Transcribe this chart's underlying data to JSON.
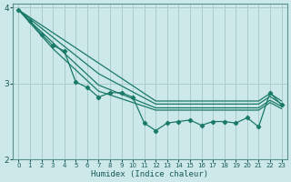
{
  "xlabel": "Humidex (Indice chaleur)",
  "background_color": "#cce8e8",
  "grid_color": "#aacccc",
  "line_color": "#1a7a6a",
  "xlim": [
    -0.5,
    23.5
  ],
  "ylim": [
    2,
    4.05
  ],
  "yticks": [
    2,
    3,
    4
  ],
  "xticks": [
    0,
    1,
    2,
    3,
    4,
    5,
    6,
    7,
    8,
    9,
    10,
    11,
    12,
    13,
    14,
    15,
    16,
    17,
    18,
    19,
    20,
    21,
    22,
    23
  ],
  "smooth_lines": [
    [
      3.97,
      3.87,
      3.77,
      3.67,
      3.57,
      3.47,
      3.37,
      3.27,
      3.17,
      3.07,
      2.97,
      2.87,
      2.77,
      2.77,
      2.77,
      2.77,
      2.77,
      2.77,
      2.77,
      2.77,
      2.77,
      2.77,
      2.87,
      2.77
    ],
    [
      3.97,
      3.85,
      3.73,
      3.61,
      3.49,
      3.37,
      3.25,
      3.13,
      3.05,
      2.97,
      2.89,
      2.81,
      2.73,
      2.73,
      2.73,
      2.73,
      2.73,
      2.73,
      2.73,
      2.73,
      2.73,
      2.73,
      2.83,
      2.73
    ],
    [
      3.97,
      3.82,
      3.68,
      3.54,
      3.4,
      3.26,
      3.12,
      2.98,
      2.92,
      2.86,
      2.8,
      2.74,
      2.68,
      2.68,
      2.68,
      2.68,
      2.68,
      2.68,
      2.68,
      2.68,
      2.68,
      2.68,
      2.78,
      2.7
    ],
    [
      3.97,
      3.8,
      3.63,
      3.46,
      3.32,
      3.18,
      3.04,
      2.9,
      2.85,
      2.8,
      2.75,
      2.7,
      2.65,
      2.65,
      2.65,
      2.65,
      2.65,
      2.65,
      2.65,
      2.65,
      2.65,
      2.65,
      2.75,
      2.67
    ]
  ],
  "marker_line": [
    3.97,
    3.82,
    3.65,
    3.5,
    3.43,
    3.02,
    2.95,
    2.82,
    2.88,
    2.88,
    2.82,
    2.48,
    2.38,
    2.48,
    2.5,
    2.52,
    2.45,
    2.5,
    2.5,
    2.48,
    2.55,
    2.43,
    2.88,
    2.72
  ]
}
